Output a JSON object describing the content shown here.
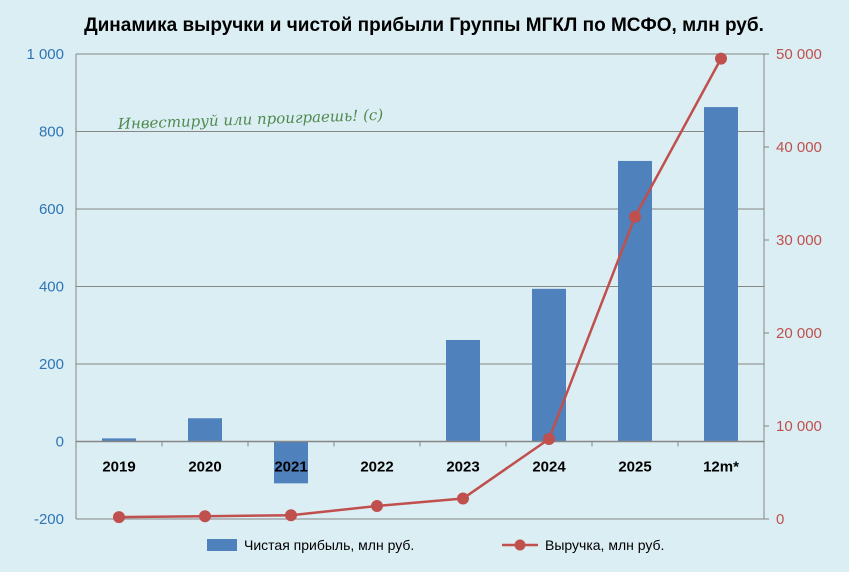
{
  "chart_data": {
    "type": "bar+line",
    "title": "Динамика выручки и чистой прибыли Группы МГКЛ по МСФО, млн руб.",
    "watermark": "Инвестируй или проиграешь! (с)",
    "categories": [
      "2019",
      "2020",
      "2021",
      "2022",
      "2023",
      "2024",
      "2025",
      "12m*"
    ],
    "series": [
      {
        "name": "Чистая прибыль, млн руб.",
        "type": "bar",
        "axis": "left",
        "color": "#4f81bd",
        "values": [
          8,
          60,
          -108,
          0,
          262,
          394,
          724,
          863
        ]
      },
      {
        "name": "Выручка, млн руб.",
        "type": "line",
        "axis": "right",
        "color": "#c0504d",
        "values": [
          200,
          300,
          400,
          1400,
          2200,
          8600,
          32500,
          49500
        ]
      }
    ],
    "y_left": {
      "min": -200,
      "max": 1000,
      "ticks": [
        "-200",
        "0",
        "200",
        "400",
        "600",
        "800",
        "1 000"
      ]
    },
    "y_right": {
      "min": 0,
      "max": 50000,
      "ticks": [
        "0",
        "10 000",
        "20 000",
        "30 000",
        "40 000",
        "50 000"
      ]
    },
    "grid": true,
    "legend_position": "bottom"
  }
}
